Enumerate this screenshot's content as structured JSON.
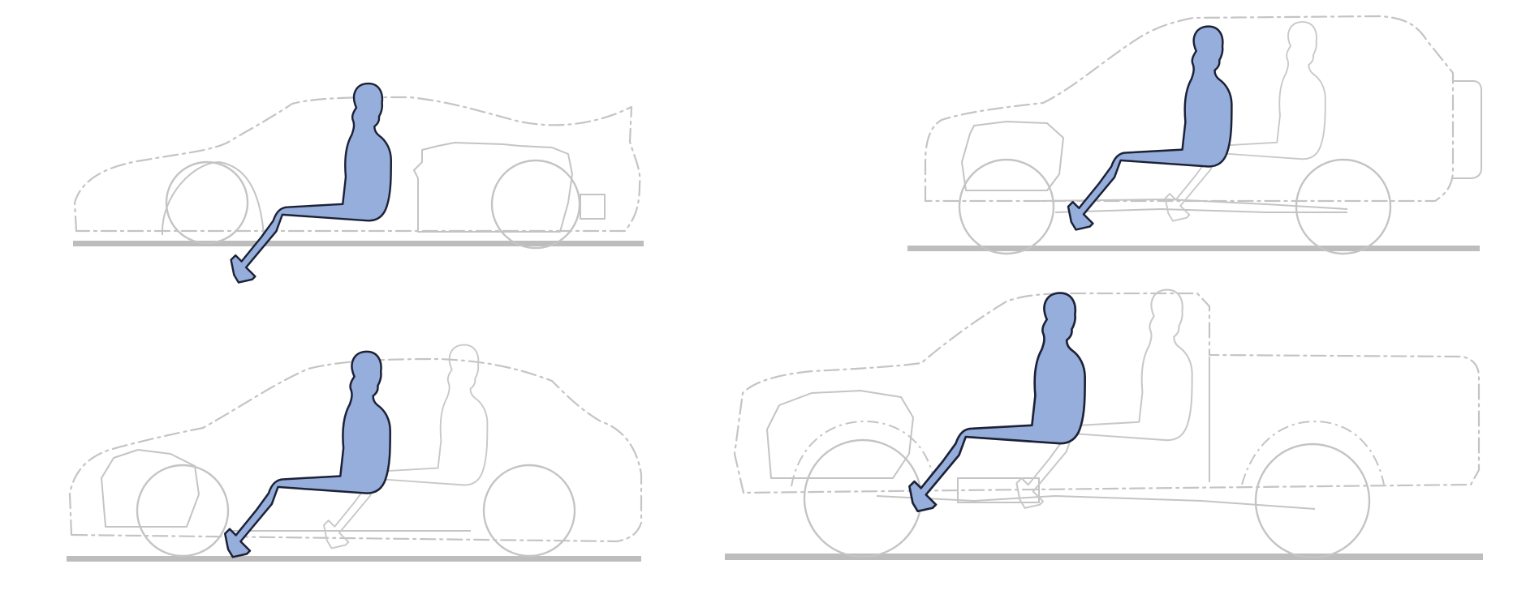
{
  "figure": {
    "panels": [
      {
        "vehicle": "sports-car",
        "occupants": [
          "driver"
        ],
        "driver_color": "#96aedc"
      },
      {
        "vehicle": "suv",
        "occupants": [
          "driver",
          "passenger"
        ],
        "driver_color": "#96aedc"
      },
      {
        "vehicle": "sedan",
        "occupants": [
          "driver",
          "passenger"
        ],
        "driver_color": "#96aedc"
      },
      {
        "vehicle": "pickup-truck",
        "occupants": [
          "driver",
          "passenger"
        ],
        "driver_color": "#96aedc"
      }
    ],
    "colors": {
      "outline": "#c4c4c4",
      "ground": "#bdbdbd",
      "driver_fill": "#96aedc",
      "driver_stroke": "#1c2136",
      "background": "#ffffff"
    }
  }
}
